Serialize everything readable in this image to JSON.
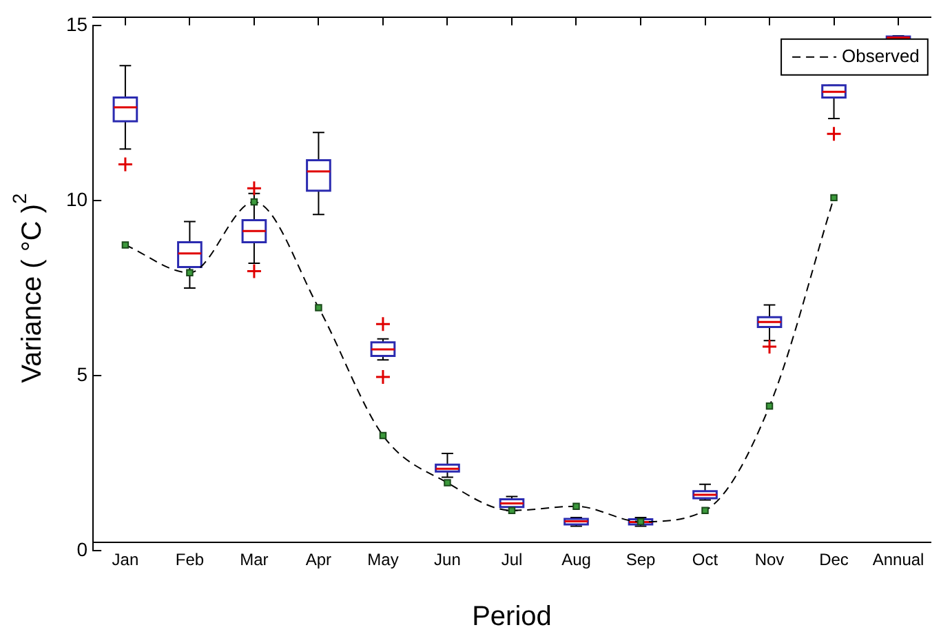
{
  "chart_data": {
    "type": "box",
    "xlabel": "Period",
    "ylabel": "Variance ( °C )$^{2}$",
    "categories": [
      "Jan",
      "Feb",
      "Mar",
      "Apr",
      "May",
      "Jun",
      "Jul",
      "Aug",
      "Sep",
      "Oct",
      "Nov",
      "Dec",
      "Annual"
    ],
    "series": [
      {
        "color": "#2b2bb0",
        "boxes": [
          {
            "low": 11.47,
            "q1": 12.26,
            "median": 12.66,
            "q3": 12.94,
            "high": 13.85,
            "outliers": [
              11.03
            ]
          },
          {
            "low": 7.5,
            "q1": 8.1,
            "median": 8.49,
            "q3": 8.81,
            "high": 9.4
          },
          {
            "low": 8.21,
            "q1": 8.81,
            "median": 9.13,
            "q3": 9.44,
            "high": 10.2,
            "outliers": [
              10.35,
              7.98
            ]
          },
          {
            "low": 9.6,
            "q1": 10.28,
            "median": 10.83,
            "q3": 11.15,
            "high": 11.94
          },
          {
            "low": 5.45,
            "q1": 5.56,
            "median": 5.75,
            "q3": 5.95,
            "high": 6.05,
            "outliers": [
              6.47,
              4.96
            ]
          },
          {
            "low": 2.1,
            "q1": 2.26,
            "median": 2.34,
            "q3": 2.46,
            "high": 2.78
          },
          {
            "low": 1.15,
            "q1": 1.25,
            "median": 1.35,
            "q3": 1.47,
            "high": 1.55
          },
          {
            "low": 0.7,
            "q1": 0.75,
            "median": 0.84,
            "q3": 0.91,
            "high": 0.95
          },
          {
            "low": 0.7,
            "q1": 0.75,
            "median": 0.82,
            "q3": 0.9,
            "high": 0.95
          },
          {
            "low": 1.45,
            "q1": 1.5,
            "median": 1.6,
            "q3": 1.7,
            "high": 1.9
          },
          {
            "low": 6.0,
            "q1": 6.39,
            "median": 6.53,
            "q3": 6.67,
            "high": 7.02,
            "outliers": [
              5.83
            ]
          },
          {
            "low": 12.34,
            "q1": 12.94,
            "median": 13.1,
            "q3": 13.29,
            "high": 13.29,
            "outliers": [
              11.9
            ]
          },
          {
            "low": 14.6,
            "q1": 14.62,
            "median": 14.65,
            "q3": 14.68,
            "high": 14.7
          }
        ]
      },
      {
        "type": "line",
        "name": "Observed",
        "color": "#000000",
        "values": [
          8.73,
          7.94,
          9.96,
          6.94,
          3.29,
          1.94,
          1.15,
          1.27,
          0.83,
          1.15,
          4.13,
          10.08,
          null
        ]
      }
    ],
    "ylim": [
      0,
      15
    ],
    "yticks": [
      0,
      5,
      10,
      15
    ],
    "grid": false,
    "legend": "top right",
    "marker": "square",
    "line_style": "dashed"
  }
}
